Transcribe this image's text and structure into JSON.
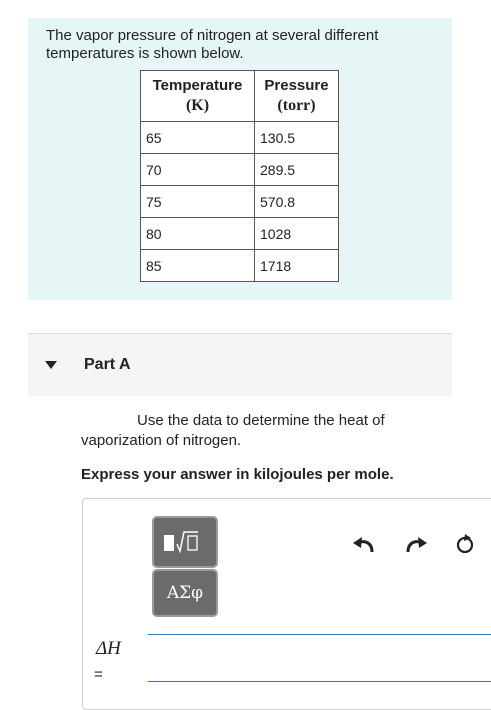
{
  "intro": "The vapor pressure of nitrogen at several different temperatures is shown below.",
  "table": {
    "headers": [
      [
        "Temperature",
        "(K)"
      ],
      [
        "Pressure",
        "(torr)"
      ]
    ],
    "rows": [
      [
        "65",
        "130.5"
      ],
      [
        "70",
        "289.5"
      ],
      [
        "75",
        "570.8"
      ],
      [
        "80",
        "1028"
      ],
      [
        "85",
        "1718"
      ]
    ]
  },
  "part": "Part A",
  "question": "Use the data to determine the heat of vaporization of nitrogen.",
  "instruction": "Express your answer in kilojoules per mole.",
  "symbols_button": "ΑΣφ",
  "answer_label": [
    "ΔH",
    "="
  ]
}
